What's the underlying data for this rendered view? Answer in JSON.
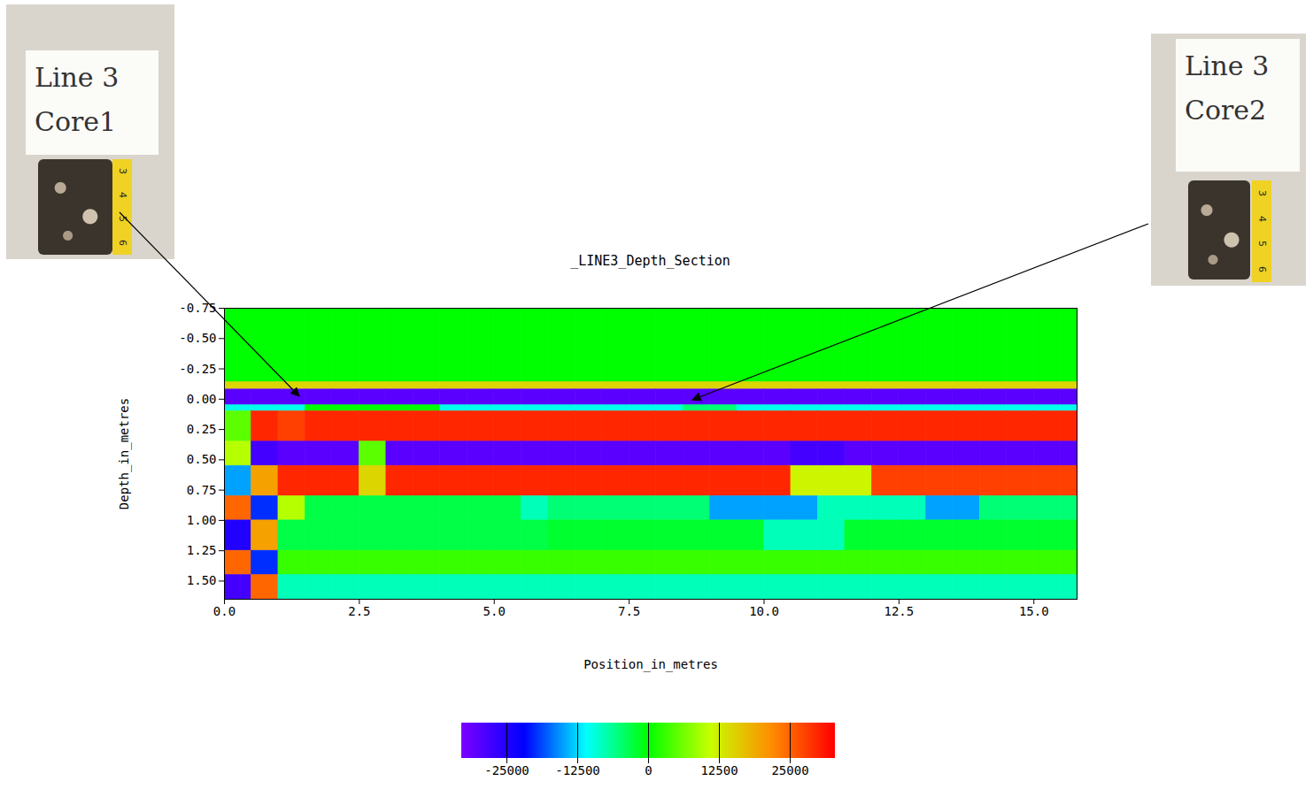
{
  "chart_data": {
    "type": "heatmap",
    "title": "_LINE3_Depth_Section",
    "x_label": "Position_in_metres",
    "y_label": "Depth_in_metres",
    "xlim": [
      0,
      15.8
    ],
    "xticks": [
      {
        "value": 0,
        "label": "0.0"
      },
      2.5,
      {
        "value": 5,
        "label": "5.0"
      },
      7.5,
      {
        "value": 10,
        "label": "10.0"
      },
      12.5,
      {
        "value": 15,
        "label": "15.0"
      }
    ],
    "ylim": [
      -0.75,
      1.65
    ],
    "yticks": [
      -0.75,
      {
        "value": -0.5,
        "label": "-0.50"
      },
      -0.25,
      {
        "value": 0,
        "label": "0.00"
      },
      0.25,
      {
        "value": 0.5,
        "label": "0.50"
      },
      0.75,
      {
        "value": 1,
        "label": "1.00"
      },
      1.25,
      {
        "value": 1.5,
        "label": "1.50"
      }
    ],
    "x_edges": [
      0,
      0.5,
      1,
      1.5,
      2,
      2.5,
      3,
      3.5,
      4,
      4.5,
      5,
      5.5,
      6,
      6.5,
      7,
      7.5,
      8,
      8.5,
      9,
      9.5,
      10,
      10.5,
      11,
      11.5,
      12,
      12.5,
      13,
      13.5,
      14,
      14.5,
      15,
      15.5,
      16
    ],
    "y_edges": [
      -0.75,
      -0.14,
      -0.08,
      0.05,
      0.1,
      0.35,
      0.55,
      0.8,
      1.0,
      1.25,
      1.45,
      1.65
    ],
    "cells": [
      [
        0,
        0,
        0,
        0,
        0,
        0,
        0,
        0,
        0,
        0,
        0,
        0,
        0,
        0,
        0,
        0,
        0,
        0,
        0,
        0,
        0,
        0,
        0,
        0,
        0,
        0,
        0,
        0,
        0,
        0,
        0,
        0
      ],
      [
        15000,
        15000,
        15000,
        15000,
        15000,
        15000,
        15000,
        15000,
        15000,
        15000,
        15000,
        15000,
        15000,
        15000,
        15000,
        15000,
        15000,
        15000,
        15000,
        15000,
        15000,
        15000,
        15000,
        15000,
        15000,
        15000,
        15000,
        15000,
        15000,
        15000,
        15000,
        15000
      ],
      [
        -30000,
        -30000,
        -30000,
        -30000,
        -30000,
        -30000,
        -30000,
        -30000,
        -30000,
        -30000,
        -30000,
        -30000,
        -30000,
        -30000,
        -30000,
        -30000,
        -30000,
        -30000,
        -30000,
        -30000,
        -30000,
        -30000,
        -30000,
        -30000,
        -30000,
        -30000,
        -30000,
        -30000,
        -30000,
        -30000,
        -30000,
        -30000
      ],
      [
        -10000,
        -10000,
        -10000,
        0,
        0,
        0,
        0,
        0,
        -10000,
        -10000,
        -10000,
        -10000,
        -10000,
        -10000,
        -10000,
        -10000,
        -10000,
        -5000,
        -5000,
        -10000,
        -10000,
        -10000,
        -10000,
        -10000,
        -10000,
        -10000,
        -10000,
        -10000,
        -10000,
        -10000,
        -10000,
        -10000
      ],
      [
        5000,
        30000,
        28000,
        30000,
        30000,
        30000,
        30000,
        30000,
        30000,
        30000,
        30000,
        30000,
        30000,
        30000,
        30000,
        30000,
        30000,
        30000,
        30000,
        30000,
        30000,
        30000,
        30000,
        30000,
        30000,
        30000,
        30000,
        30000,
        30000,
        30000,
        30000,
        30000
      ],
      [
        10000,
        -28000,
        -30000,
        -30000,
        -30000,
        5000,
        -30000,
        -30000,
        -30000,
        -30000,
        -30000,
        -30000,
        -30000,
        -30000,
        -30000,
        -30000,
        -30000,
        -30000,
        -30000,
        -30000,
        -30000,
        -28000,
        -28000,
        -30000,
        -30000,
        -30000,
        -30000,
        -30000,
        -30000,
        -30000,
        -30000,
        -30000
      ],
      [
        -15000,
        20000,
        30000,
        30000,
        30000,
        15000,
        30000,
        30000,
        30000,
        30000,
        30000,
        30000,
        30000,
        30000,
        30000,
        30000,
        30000,
        30000,
        30000,
        30000,
        30000,
        12000,
        12000,
        12000,
        28000,
        28000,
        28000,
        28000,
        28000,
        28000,
        28000,
        28000
      ],
      [
        25000,
        -20000,
        10000,
        -3000,
        -3000,
        -3000,
        -3000,
        -3000,
        -3000,
        -3000,
        -3000,
        -8000,
        -5000,
        -5000,
        -5000,
        -5000,
        -5000,
        -5000,
        -15000,
        -15000,
        -15000,
        -15000,
        -8000,
        -8000,
        -8000,
        -8000,
        -15000,
        -15000,
        -5000,
        -5000,
        -5000,
        -5000
      ],
      [
        -25000,
        20000,
        -3000,
        -3000,
        -3000,
        -3000,
        -3000,
        -3000,
        -3000,
        -3000,
        -3000,
        -3000,
        -2000,
        -2000,
        -2000,
        -2000,
        -2000,
        -2000,
        -2000,
        -2000,
        -8000,
        -8000,
        -8000,
        -2000,
        -2000,
        -2000,
        -2000,
        -2000,
        -2000,
        -2000,
        -2000,
        -2000
      ],
      [
        25000,
        -20000,
        3000,
        3000,
        3000,
        3000,
        3000,
        3000,
        3000,
        3000,
        3000,
        3000,
        3000,
        3000,
        3000,
        3000,
        3000,
        3000,
        3000,
        3000,
        3000,
        3000,
        3000,
        3000,
        3000,
        3000,
        3000,
        3000,
        3000,
        3000,
        3000,
        3000
      ],
      [
        -28000,
        25000,
        -8000,
        -8000,
        -8000,
        -8000,
        -8000,
        -8000,
        -8000,
        -8000,
        -8000,
        -8000,
        -8000,
        -8000,
        -8000,
        -8000,
        -8000,
        -8000,
        -8000,
        -8000,
        -8000,
        -8000,
        -8000,
        -8000,
        -8000,
        -8000,
        -8000,
        -8000,
        -8000,
        -8000,
        -8000,
        -8000
      ]
    ],
    "colorbar": {
      "range": [
        -33000,
        33000
      ],
      "ticks": [
        -25000,
        -12500,
        0,
        12500,
        25000
      ]
    }
  },
  "photos": [
    {
      "label": [
        "Line 3",
        "Core1"
      ],
      "tape_marks": [
        "3",
        "4",
        "5",
        "6"
      ]
    },
    {
      "label": [
        "Line 3",
        "Core2"
      ],
      "tape_marks": [
        "3",
        "4",
        "5",
        "6"
      ]
    }
  ]
}
